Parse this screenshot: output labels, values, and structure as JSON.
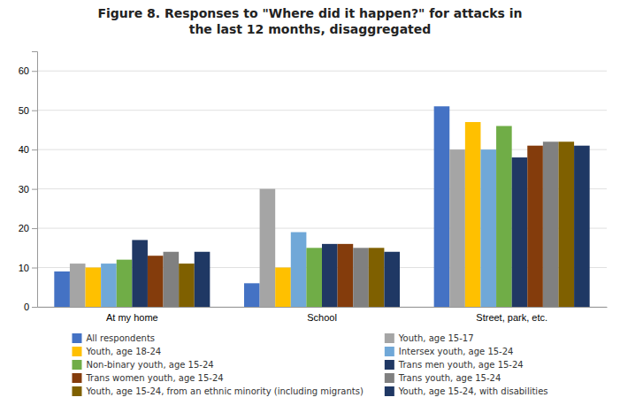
{
  "chart_data": {
    "type": "bar",
    "title": "Figure 8. Responses to \"Where did it happen?\" for attacks in\nthe last 12 months, disaggregated",
    "categories": [
      "At my home",
      "School",
      "Street, park, etc."
    ],
    "series": [
      {
        "name": "All respondents",
        "color": "#4472C4",
        "values": [
          9,
          6,
          51
        ]
      },
      {
        "name": "Youth, age 15-17",
        "color": "#A5A5A5",
        "values": [
          11,
          30,
          40
        ]
      },
      {
        "name": "Youth, age 18-24",
        "color": "#FFC000",
        "values": [
          10,
          10,
          47
        ]
      },
      {
        "name": "Intersex youth, age 15-24",
        "color": "#70A8D8",
        "values": [
          11,
          19,
          40
        ]
      },
      {
        "name": "Non-binary youth, age 15-24",
        "color": "#70AD47",
        "values": [
          12,
          15,
          46
        ]
      },
      {
        "name": "Trans men youth, age 15-24",
        "color": "#203864",
        "values": [
          17,
          16,
          38
        ]
      },
      {
        "name": "Trans women youth, age 15-24",
        "color": "#843C0C",
        "values": [
          13,
          16,
          41
        ]
      },
      {
        "name": "Trans youth, age 15-24",
        "color": "#808080",
        "values": [
          14,
          15,
          42
        ]
      },
      {
        "name": "Youth, age 15-24, from an ethnic minority (including migrants)",
        "color": "#7F6000",
        "values": [
          11,
          15,
          42
        ]
      },
      {
        "name": "Youth, age 15-24, with disabilities",
        "color": "#1F3864",
        "values": [
          14,
          14,
          41
        ]
      }
    ],
    "ylim": [
      0,
      65
    ],
    "yticks": [
      0,
      10,
      20,
      30,
      40,
      50,
      60
    ],
    "grid": true,
    "legend": "bottom"
  }
}
